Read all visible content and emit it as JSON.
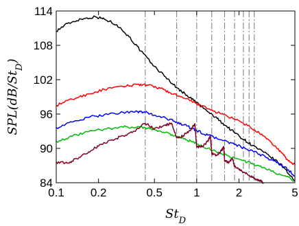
{
  "chart_data": {
    "type": "line",
    "xlabel": "St_D",
    "ylabel": "SPL(dB/St_D)",
    "xscale": "log",
    "xlim": [
      0.1,
      5
    ],
    "ylim": [
      84,
      114
    ],
    "xticks": [
      {
        "value": 0.1,
        "label": "0.1"
      },
      {
        "value": 0.2,
        "label": "0.2"
      },
      {
        "value": 0.5,
        "label": "0.5"
      },
      {
        "value": 1,
        "label": "1"
      },
      {
        "value": 2,
        "label": "2"
      },
      {
        "value": 5,
        "label": "5"
      }
    ],
    "yticks": [
      {
        "value": 84,
        "label": "84"
      },
      {
        "value": 90,
        "label": "90"
      },
      {
        "value": 96,
        "label": "96"
      },
      {
        "value": 102,
        "label": "102"
      },
      {
        "value": 108,
        "label": "108"
      },
      {
        "value": 114,
        "label": "114"
      }
    ],
    "grid": false,
    "vlines": [
      0.43,
      0.72,
      1.0,
      1.28,
      1.58,
      1.86,
      2.15,
      2.36,
      2.57
    ],
    "series": [
      {
        "color": "#000000",
        "points": [
          [
            0.1,
            110.5
          ],
          [
            0.12,
            111.8
          ],
          [
            0.15,
            112.6
          ],
          [
            0.19,
            113.0
          ],
          [
            0.22,
            112.6
          ],
          [
            0.27,
            111.6
          ],
          [
            0.33,
            109.5
          ],
          [
            0.4,
            107.0
          ],
          [
            0.5,
            104.3
          ],
          [
            0.6,
            102.5
          ],
          [
            0.72,
            100.6
          ],
          [
            0.85,
            99.3
          ],
          [
            1.0,
            98.0
          ],
          [
            1.2,
            96.4
          ],
          [
            1.4,
            95.2
          ],
          [
            1.6,
            94.0
          ],
          [
            1.86,
            92.8
          ],
          [
            2.15,
            91.6
          ],
          [
            2.5,
            90.5
          ],
          [
            3.0,
            89.3
          ],
          [
            3.6,
            88.0
          ],
          [
            4.2,
            86.6
          ],
          [
            5.0,
            84.3
          ]
        ]
      },
      {
        "color": "#ff0000",
        "points": [
          [
            0.1,
            97.5
          ],
          [
            0.13,
            98.6
          ],
          [
            0.17,
            99.5
          ],
          [
            0.22,
            100.3
          ],
          [
            0.3,
            100.8
          ],
          [
            0.38,
            101.2
          ],
          [
            0.45,
            101.0
          ],
          [
            0.55,
            100.5
          ],
          [
            0.65,
            99.7
          ],
          [
            0.8,
            98.8
          ],
          [
            1.0,
            97.8
          ],
          [
            1.2,
            96.9
          ],
          [
            1.5,
            96.0
          ],
          [
            1.86,
            95.1
          ],
          [
            2.3,
            94.0
          ],
          [
            2.8,
            92.6
          ],
          [
            3.4,
            91.0
          ],
          [
            4.0,
            89.3
          ],
          [
            4.5,
            87.8
          ],
          [
            5.0,
            87.2
          ]
        ]
      },
      {
        "color": "#0000ff",
        "points": [
          [
            0.1,
            93.6
          ],
          [
            0.13,
            94.6
          ],
          [
            0.17,
            95.4
          ],
          [
            0.22,
            95.9
          ],
          [
            0.3,
            96.3
          ],
          [
            0.38,
            96.4
          ],
          [
            0.43,
            96.3
          ],
          [
            0.5,
            95.8
          ],
          [
            0.6,
            95.3
          ],
          [
            0.72,
            94.6
          ],
          [
            0.85,
            93.9
          ],
          [
            1.0,
            93.1
          ],
          [
            1.2,
            92.3
          ],
          [
            1.5,
            91.5
          ],
          [
            1.86,
            90.7
          ],
          [
            2.3,
            89.8
          ],
          [
            2.8,
            89.0
          ],
          [
            3.4,
            88.0
          ],
          [
            4.2,
            86.8
          ],
          [
            5.0,
            85.2
          ]
        ]
      },
      {
        "color": "#00bb00",
        "points": [
          [
            0.1,
            91.2
          ],
          [
            0.13,
            92.1
          ],
          [
            0.17,
            92.9
          ],
          [
            0.22,
            93.4
          ],
          [
            0.3,
            93.7
          ],
          [
            0.38,
            93.8
          ],
          [
            0.43,
            93.6
          ],
          [
            0.5,
            93.3
          ],
          [
            0.6,
            92.8
          ],
          [
            0.72,
            92.1
          ],
          [
            0.85,
            91.5
          ],
          [
            1.0,
            90.8
          ],
          [
            1.2,
            90.0
          ],
          [
            1.5,
            89.1
          ],
          [
            1.86,
            88.3
          ],
          [
            2.3,
            87.6
          ],
          [
            2.8,
            86.9
          ],
          [
            3.4,
            86.0
          ],
          [
            4.2,
            85.2
          ],
          [
            5.0,
            84.3
          ]
        ]
      },
      {
        "color": "#800020",
        "points": [
          [
            0.1,
            87.6
          ],
          [
            0.12,
            87.4
          ],
          [
            0.14,
            88.2
          ],
          [
            0.17,
            89.4
          ],
          [
            0.2,
            90.4
          ],
          [
            0.25,
            91.5
          ],
          [
            0.3,
            92.2
          ],
          [
            0.36,
            93.0
          ],
          [
            0.43,
            94.4
          ],
          [
            0.5,
            93.4
          ],
          [
            0.6,
            94.0
          ],
          [
            0.66,
            94.4
          ],
          [
            0.72,
            91.8
          ],
          [
            0.8,
            92.2
          ],
          [
            0.9,
            93.1
          ],
          [
            0.97,
            94.3
          ],
          [
            1.0,
            90.2
          ],
          [
            1.1,
            90.4
          ],
          [
            1.2,
            91.2
          ],
          [
            1.25,
            92.2
          ],
          [
            1.28,
            89.1
          ],
          [
            1.4,
            88.8
          ],
          [
            1.5,
            89.6
          ],
          [
            1.56,
            90.3
          ],
          [
            1.58,
            87.8
          ],
          [
            1.7,
            87.6
          ],
          [
            1.8,
            88.2
          ],
          [
            1.86,
            86.8
          ],
          [
            2.0,
            86.4
          ],
          [
            2.15,
            85.8
          ],
          [
            2.36,
            85.3
          ],
          [
            2.57,
            84.8
          ],
          [
            2.8,
            84.4
          ],
          [
            3.0,
            84.0
          ]
        ]
      }
    ]
  }
}
